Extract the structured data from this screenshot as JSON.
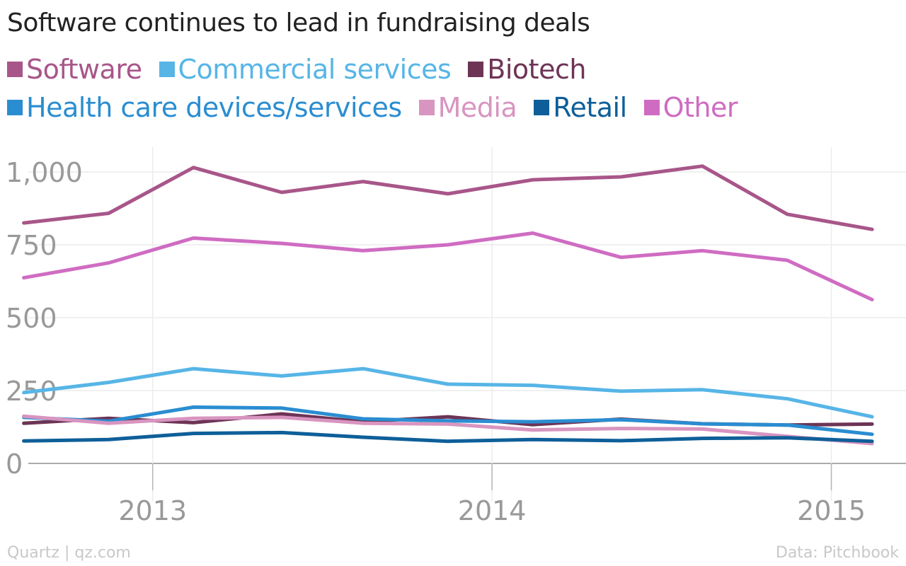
{
  "title": "Software continues to lead in fundraising deals",
  "footer": {
    "credit": "Quartz | qz.com",
    "source": "Data: Pitchbook"
  },
  "chart_data": {
    "type": "line",
    "title": "Software continues to lead in fundraising deals",
    "xlabel": "",
    "ylabel": "",
    "ylim": [
      -80,
      1085
    ],
    "yticks": [
      0,
      250,
      500,
      750,
      1000
    ],
    "ytick_labels": [
      "0",
      "250",
      "500",
      "750",
      "1,000"
    ],
    "xlim": [
      2012.55,
      2015.22
    ],
    "xticks": [
      2013,
      2014,
      2015
    ],
    "xtick_labels": [
      "2013",
      "2014",
      "2015"
    ],
    "grid": true,
    "legend_position": "top",
    "x": [
      2012.62,
      2012.87,
      2013.12,
      2013.38,
      2013.62,
      2013.87,
      2014.12,
      2014.38,
      2014.62,
      2014.87,
      2015.12
    ],
    "series": [
      {
        "name": "Software",
        "color": "#a85689",
        "values": [
          825,
          858,
          1015,
          930,
          967,
          925,
          973,
          983,
          1020,
          855,
          803
        ]
      },
      {
        "name": "Commercial services",
        "color": "#57b5e6",
        "values": [
          243,
          278,
          325,
          300,
          325,
          272,
          268,
          248,
          253,
          222,
          160
        ]
      },
      {
        "name": "Biotech",
        "color": "#6d3456",
        "values": [
          138,
          155,
          140,
          170,
          143,
          160,
          133,
          152,
          136,
          132,
          135
        ]
      },
      {
        "name": "Health care devices/services",
        "color": "#2a8dd1",
        "values": [
          158,
          145,
          193,
          190,
          153,
          146,
          143,
          150,
          136,
          132,
          100
        ]
      },
      {
        "name": "Media",
        "color": "#d895c0",
        "values": [
          162,
          138,
          155,
          158,
          138,
          135,
          115,
          120,
          118,
          93,
          68
        ]
      },
      {
        "name": "Retail",
        "color": "#0e5f99",
        "values": [
          77,
          82,
          103,
          106,
          90,
          76,
          82,
          78,
          86,
          88,
          76
        ]
      },
      {
        "name": "Other",
        "color": "#cf6cc2",
        "values": [
          637,
          688,
          773,
          755,
          730,
          750,
          790,
          707,
          730,
          697,
          562
        ]
      }
    ]
  }
}
